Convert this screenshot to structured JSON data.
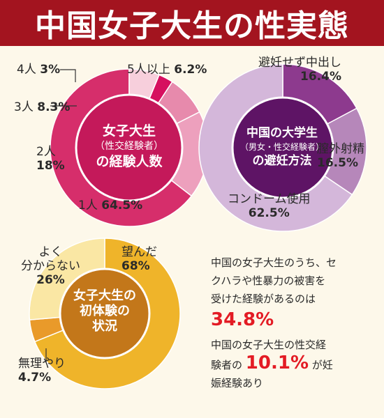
{
  "title": "中国女子大生の性実態",
  "colors": {
    "header": "#a3141f",
    "accent_red": "#e31b24",
    "background": "#fdf8ea"
  },
  "chart_data": [
    {
      "type": "pie",
      "title_lines": [
        "女子大生",
        "（性交経験者）",
        "の経験人数"
      ],
      "categories": [
        "1人",
        "2人",
        "3人",
        "4人",
        "5人以上"
      ],
      "values": [
        64.5,
        18,
        8.3,
        3,
        6.2
      ],
      "value_labels": [
        "64.5%",
        "18%",
        "8.3%",
        "3%",
        "6.2%"
      ],
      "colors": [
        "#d62e6b",
        "#eda0bd",
        "#e78aac",
        "#d6105f",
        "#f7cfdc"
      ]
    },
    {
      "type": "pie",
      "title_lines": [
        "中国の大学生",
        "（男女・性交経験者）",
        "の避妊方法"
      ],
      "categories": [
        "避妊せず中出し",
        "膣外射精",
        "コンドーム使用"
      ],
      "values": [
        16.4,
        16.5,
        62.5
      ],
      "value_labels": [
        "16.4%",
        "16.5%",
        "62.5%"
      ],
      "colors": [
        "#8d3a8e",
        "#b687ba",
        "#d4b7da"
      ]
    },
    {
      "type": "pie",
      "title_lines": [
        "女子大生の",
        "初体験の",
        "状況"
      ],
      "categories": [
        "望んだ",
        "無理やり",
        "よく分からない"
      ],
      "values": [
        68,
        4.7,
        26
      ],
      "value_labels": [
        "68%",
        "4.7%",
        "26%"
      ],
      "colors": [
        "#efb42a",
        "#e99a2a",
        "#fae7a4"
      ]
    }
  ],
  "labels": {
    "p1_s1_name": "1人",
    "p1_s1_val": "64.5%",
    "p1_s2_name": "2人",
    "p1_s2_val": "18%",
    "p1_s3_name": "3人",
    "p1_s3_val": "8.3%",
    "p1_s4_name": "4人",
    "p1_s4_val": "3%",
    "p1_s5_name": "5人以上",
    "p1_s5_val": "6.2%",
    "p2_s1_name": "避妊せず中出し",
    "p2_s1_val": "16.4%",
    "p2_s2_name": "膣外射精",
    "p2_s2_val": "16.5%",
    "p2_s3_name": "コンドーム使用",
    "p2_s3_val": "62.5%",
    "p3_s1_name": "望んだ",
    "p3_s1_val": "68%",
    "p3_s2_name": "無理やり",
    "p3_s2_val": "4.7%",
    "p3_s3_name1": "よく",
    "p3_s3_name2": "分からない",
    "p3_s3_val": "26%"
  },
  "stats": {
    "s1_line1": "中国の女子大生のうち、セ",
    "s1_line2": "クハラや性暴力の被害を",
    "s1_line3": "受けた経験があるのは",
    "s1_value": "34.8%",
    "s2_line1": "中国の女子大生の性交経",
    "s2_pre": "験者の",
    "s2_value": "10.1%",
    "s2_post": "が妊",
    "s2_line3": "娠経験あり"
  }
}
